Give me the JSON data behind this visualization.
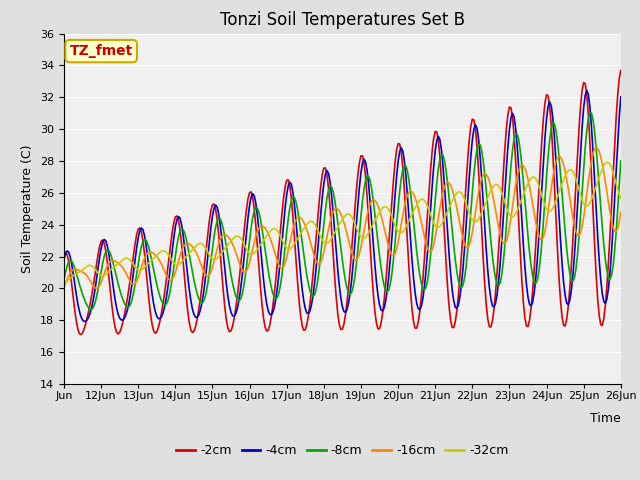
{
  "title": "Tonzi Soil Temperatures Set B",
  "xlabel": "Time",
  "ylabel": "Soil Temperature (C)",
  "ylim": [
    14,
    36
  ],
  "annotation_text": "TZ_fmet",
  "annotation_bbox_face": "#ffffcc",
  "annotation_bbox_edge": "#ccaa00",
  "series_colors": [
    "#dd0000",
    "#0000cc",
    "#00aa00",
    "#ff8800",
    "#cccc00"
  ],
  "series_labels": [
    "-2cm",
    "-4cm",
    "-8cm",
    "-16cm",
    "-32cm"
  ],
  "bg_color": "#e0e0e0",
  "plot_bg_color": "#f0f0f0",
  "grid_color": "#ffffff",
  "title_fontsize": 12,
  "axis_label_fontsize": 9,
  "tick_fontsize": 8,
  "legend_fontsize": 9,
  "x_tick_labels": [
    "Jun",
    "12Jun",
    "13Jun",
    "14Jun",
    "15Jun",
    "16Jun",
    "17Jun",
    "18Jun",
    "19Jun",
    "20Jun",
    "21Jun",
    "22Jun",
    "23Jun",
    "24Jun",
    "25Jun",
    "26Jun"
  ],
  "linewidth": 1.2
}
